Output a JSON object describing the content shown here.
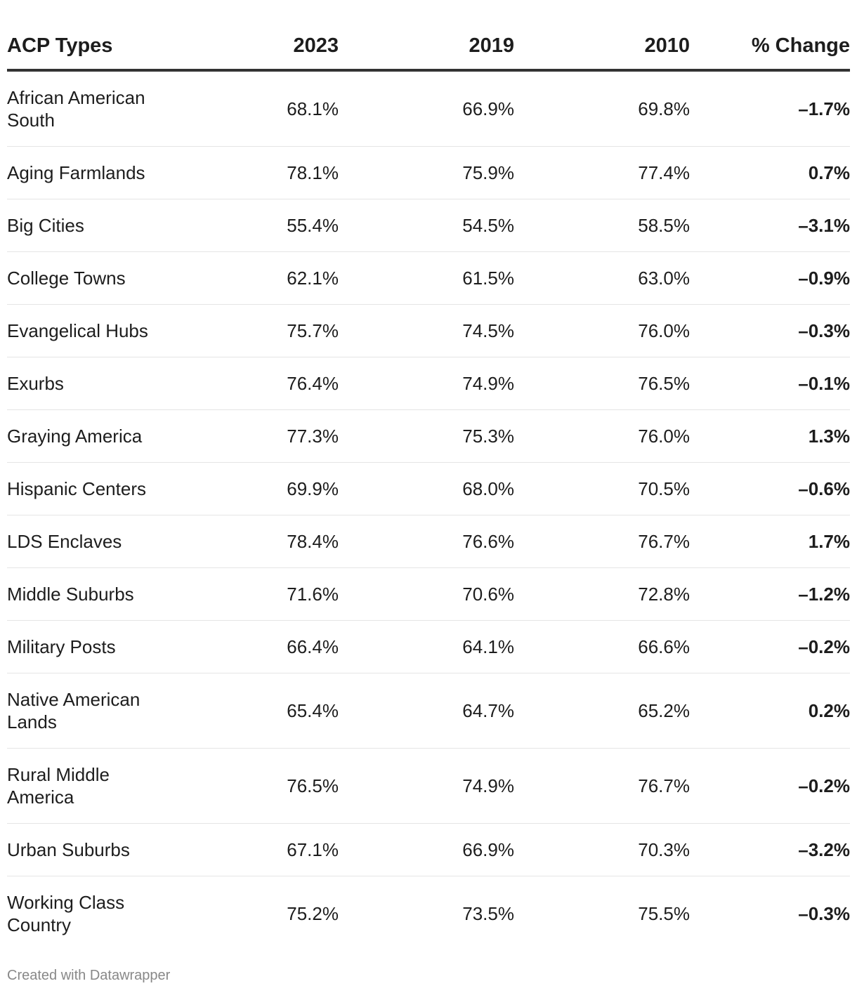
{
  "chart_data": {
    "type": "table",
    "columns": [
      "ACP Types",
      "2023",
      "2019",
      "2010",
      "% Change"
    ],
    "rows": [
      {
        "type": "African American South",
        "y2023": "68.1%",
        "y2019": "66.9%",
        "y2010": "69.8%",
        "change": "–1.7%"
      },
      {
        "type": "Aging Farmlands",
        "y2023": "78.1%",
        "y2019": "75.9%",
        "y2010": "77.4%",
        "change": "0.7%"
      },
      {
        "type": "Big Cities",
        "y2023": "55.4%",
        "y2019": "54.5%",
        "y2010": "58.5%",
        "change": "–3.1%"
      },
      {
        "type": "College Towns",
        "y2023": "62.1%",
        "y2019": "61.5%",
        "y2010": "63.0%",
        "change": "–0.9%"
      },
      {
        "type": "Evangelical Hubs",
        "y2023": "75.7%",
        "y2019": "74.5%",
        "y2010": "76.0%",
        "change": "–0.3%"
      },
      {
        "type": "Exurbs",
        "y2023": "76.4%",
        "y2019": "74.9%",
        "y2010": "76.5%",
        "change": "–0.1%"
      },
      {
        "type": "Graying America",
        "y2023": "77.3%",
        "y2019": "75.3%",
        "y2010": "76.0%",
        "change": "1.3%"
      },
      {
        "type": "Hispanic Centers",
        "y2023": "69.9%",
        "y2019": "68.0%",
        "y2010": "70.5%",
        "change": "–0.6%"
      },
      {
        "type": "LDS Enclaves",
        "y2023": "78.4%",
        "y2019": "76.6%",
        "y2010": "76.7%",
        "change": "1.7%"
      },
      {
        "type": "Middle Suburbs",
        "y2023": "71.6%",
        "y2019": "70.6%",
        "y2010": "72.8%",
        "change": "–1.2%"
      },
      {
        "type": "Military Posts",
        "y2023": "66.4%",
        "y2019": "64.1%",
        "y2010": "66.6%",
        "change": "–0.2%"
      },
      {
        "type": "Native American Lands",
        "y2023": "65.4%",
        "y2019": "64.7%",
        "y2010": "65.2%",
        "change": "0.2%"
      },
      {
        "type": "Rural Middle America",
        "y2023": "76.5%",
        "y2019": "74.9%",
        "y2010": "76.7%",
        "change": "–0.2%"
      },
      {
        "type": "Urban Suburbs",
        "y2023": "67.1%",
        "y2019": "66.9%",
        "y2010": "70.3%",
        "change": "–3.2%"
      },
      {
        "type": "Working Class Country",
        "y2023": "75.2%",
        "y2019": "73.5%",
        "y2010": "75.5%",
        "change": "–0.3%"
      }
    ]
  },
  "footer": {
    "credit": "Created with Datawrapper"
  },
  "colors": {
    "text": "#1d1d1d",
    "header_rule": "#333333",
    "row_rule": "#e5e5e5",
    "footer_text": "#888888"
  }
}
